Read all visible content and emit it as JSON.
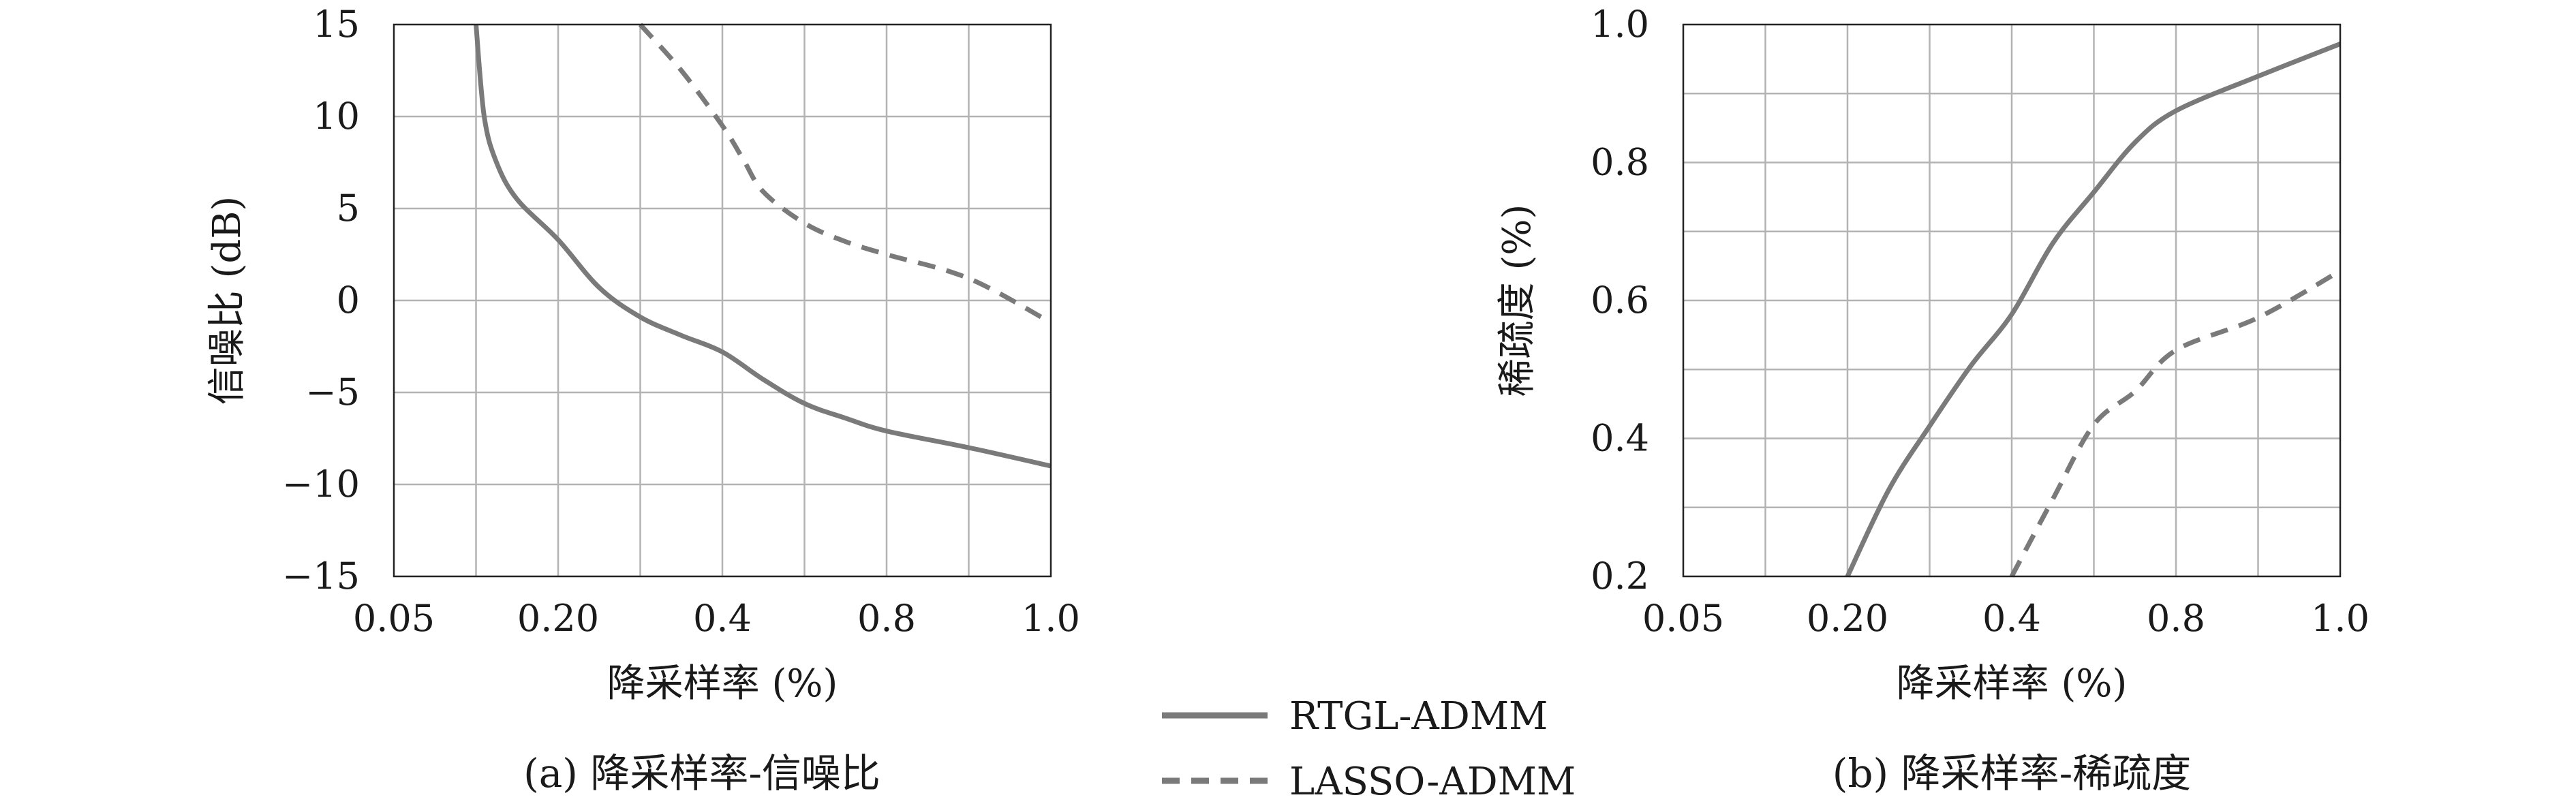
{
  "chart_data": [
    {
      "type": "line",
      "panel": "a",
      "caption": "(a) 降采样率-信噪比",
      "title": "",
      "xlabel": "降采样率 (%)",
      "ylabel": "信噪比 (dB)",
      "x_ticks": [
        "0.05",
        "0.20",
        "0.4",
        "0.8",
        "1.0"
      ],
      "y_ticks": [
        "15",
        "10",
        "5",
        "0",
        "−5",
        "−10",
        "−15"
      ],
      "grid": true,
      "series": [
        {
          "name": "RTGL-ADMM",
          "style": "solid",
          "x": [
            0.1,
            0.11,
            0.125,
            0.15,
            0.2,
            0.25,
            0.3,
            0.35,
            0.4,
            0.5,
            0.6,
            0.7,
            0.8,
            0.9,
            1.0
          ],
          "y": [
            15,
            10.0,
            7.5,
            5.5,
            3.3,
            0.7,
            -0.9,
            -1.9,
            -2.8,
            -4.3,
            -5.6,
            -6.4,
            -7.1,
            -8.0,
            -9.0
          ]
        },
        {
          "name": "LASSO-ADMM",
          "style": "dashed",
          "x": [
            0.3,
            0.35,
            0.4,
            0.45,
            0.5,
            0.6,
            0.7,
            0.8,
            0.9,
            1.0
          ],
          "y": [
            15,
            12.5,
            9.5,
            7.7,
            5.9,
            4.2,
            3.2,
            2.5,
            1.2,
            -1.2
          ]
        }
      ]
    },
    {
      "type": "line",
      "panel": "b",
      "caption": "(b) 降采样率-稀疏度",
      "title": "",
      "xlabel": "降采样率 (%)",
      "ylabel": "稀疏度 (%)",
      "x_ticks": [
        "0.05",
        "0.20",
        "0.4",
        "0.8",
        "1.0"
      ],
      "y_ticks": [
        "1.0",
        "0.8",
        "0.6",
        "0.4",
        "0.2"
      ],
      "grid": true,
      "series": [
        {
          "name": "RTGL-ADMM",
          "style": "solid",
          "x": [
            0.2,
            0.25,
            0.3,
            0.35,
            0.4,
            0.5,
            0.6,
            0.7,
            0.8,
            0.9,
            1.0
          ],
          "y": [
            0.2,
            0.325,
            0.418,
            0.505,
            0.58,
            0.683,
            0.757,
            0.829,
            0.875,
            0.925,
            0.972
          ]
        },
        {
          "name": "LASSO-ADMM",
          "style": "dashed",
          "x": [
            0.4,
            0.5,
            0.6,
            0.7,
            0.8,
            0.9,
            1.0
          ],
          "y": [
            0.2,
            0.312,
            0.42,
            0.468,
            0.528,
            0.575,
            0.643
          ]
        }
      ]
    }
  ],
  "legend": {
    "placement": "bottom-center",
    "entries": [
      {
        "label": "RTGL-ADMM",
        "style": "solid"
      },
      {
        "label": "LASSO-ADMM",
        "style": "dashed"
      }
    ]
  },
  "colors": {
    "series": "#7a7a7a",
    "grid": "#b3b3b3",
    "axes": "#222222",
    "text": "#1a1a1a"
  }
}
